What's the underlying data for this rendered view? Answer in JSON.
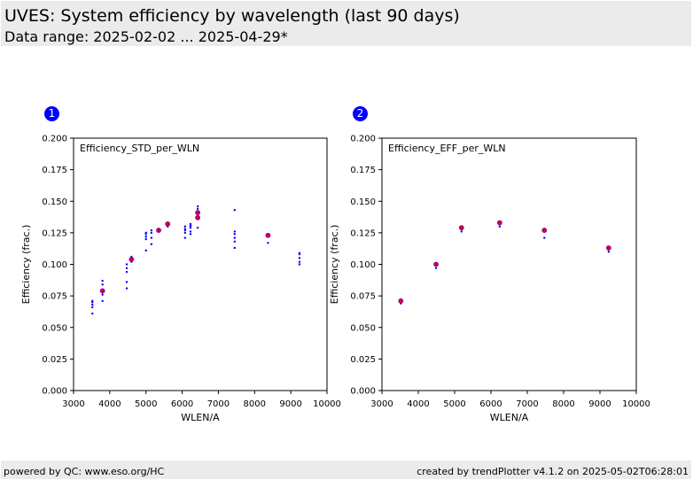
{
  "header": {
    "title": "UVES: System efficiency by wavelength (last 90 days)",
    "subtitle": "Data range: 2025-02-02 ... 2025-04-29*"
  },
  "footer": {
    "left": "powered by QC: www.eso.org/HC",
    "right": "created by trendPlotter v4.1.2 on 2025-05-02T06:28:01"
  },
  "colors": {
    "points": "#0000ff",
    "median": "#cc0044",
    "badge": "#0000ff",
    "header_bg": "#ebebeb"
  },
  "chart_data": [
    {
      "type": "scatter",
      "badge": "1",
      "title": "Efficiency_STD_per_WLN",
      "xlabel": "WLEN/A",
      "ylabel": "Efficiency (frac.)",
      "xlim": [
        3000,
        10000
      ],
      "ylim": [
        0,
        0.2
      ],
      "xticks": [
        "3000",
        "4000",
        "5000",
        "6000",
        "7000",
        "8000",
        "9000",
        "10000"
      ],
      "yticks": [
        "0.000",
        "0.025",
        "0.050",
        "0.075",
        "0.100",
        "0.125",
        "0.150",
        "0.175",
        "0.200"
      ],
      "grid": false,
      "points": [
        [
          3520,
          0.061
        ],
        [
          3520,
          0.066
        ],
        [
          3520,
          0.068
        ],
        [
          3520,
          0.07
        ],
        [
          3520,
          0.071
        ],
        [
          3800,
          0.071
        ],
        [
          3800,
          0.076
        ],
        [
          3800,
          0.078
        ],
        [
          3800,
          0.08
        ],
        [
          3800,
          0.084
        ],
        [
          3800,
          0.087
        ],
        [
          4470,
          0.081
        ],
        [
          4470,
          0.086
        ],
        [
          4470,
          0.094
        ],
        [
          4470,
          0.097
        ],
        [
          4470,
          0.1
        ],
        [
          4600,
          0.102
        ],
        [
          4600,
          0.104
        ],
        [
          4600,
          0.106
        ],
        [
          5000,
          0.111
        ],
        [
          5000,
          0.12
        ],
        [
          5000,
          0.122
        ],
        [
          5000,
          0.124
        ],
        [
          5000,
          0.125
        ],
        [
          5150,
          0.116
        ],
        [
          5150,
          0.121
        ],
        [
          5150,
          0.125
        ],
        [
          5150,
          0.127
        ],
        [
          5350,
          0.126
        ],
        [
          5350,
          0.127
        ],
        [
          5600,
          0.13
        ],
        [
          5600,
          0.131
        ],
        [
          5600,
          0.132
        ],
        [
          6080,
          0.121
        ],
        [
          6080,
          0.125
        ],
        [
          6080,
          0.127
        ],
        [
          6080,
          0.128
        ],
        [
          6080,
          0.13
        ],
        [
          6230,
          0.124
        ],
        [
          6230,
          0.126
        ],
        [
          6230,
          0.129
        ],
        [
          6230,
          0.13
        ],
        [
          6230,
          0.131
        ],
        [
          6230,
          0.132
        ],
        [
          6430,
          0.129
        ],
        [
          6430,
          0.136
        ],
        [
          6430,
          0.138
        ],
        [
          6430,
          0.14
        ],
        [
          6430,
          0.144
        ],
        [
          6430,
          0.146
        ],
        [
          7450,
          0.113
        ],
        [
          7450,
          0.118
        ],
        [
          7450,
          0.121
        ],
        [
          7450,
          0.124
        ],
        [
          7450,
          0.126
        ],
        [
          7450,
          0.143
        ],
        [
          8370,
          0.117
        ],
        [
          8370,
          0.123
        ],
        [
          9240,
          0.1
        ],
        [
          9240,
          0.102
        ],
        [
          9240,
          0.105
        ],
        [
          9240,
          0.108
        ],
        [
          9240,
          0.109
        ]
      ],
      "medians": [
        [
          3800,
          0.079
        ],
        [
          4600,
          0.104
        ],
        [
          5350,
          0.127
        ],
        [
          5600,
          0.132
        ],
        [
          6430,
          0.137
        ],
        [
          6430,
          0.141
        ],
        [
          8370,
          0.123
        ]
      ]
    },
    {
      "type": "scatter",
      "badge": "2",
      "title": "Efficiency_EFF_per_WLN",
      "xlabel": "WLEN/A",
      "ylabel": "Efficiency (frac.)",
      "xlim": [
        3000,
        10000
      ],
      "ylim": [
        0,
        0.2
      ],
      "xticks": [
        "3000",
        "4000",
        "5000",
        "6000",
        "7000",
        "8000",
        "9000",
        "10000"
      ],
      "yticks": [
        "0.000",
        "0.025",
        "0.050",
        "0.075",
        "0.100",
        "0.125",
        "0.150",
        "0.175",
        "0.200"
      ],
      "grid": false,
      "points": [
        [
          3520,
          0.069
        ],
        [
          4490,
          0.097
        ],
        [
          5190,
          0.126
        ],
        [
          6240,
          0.13
        ],
        [
          7470,
          0.121
        ],
        [
          9240,
          0.11
        ]
      ],
      "medians": [
        [
          3520,
          0.071
        ],
        [
          4490,
          0.1
        ],
        [
          5190,
          0.129
        ],
        [
          6240,
          0.133
        ],
        [
          7470,
          0.127
        ],
        [
          9240,
          0.113
        ]
      ]
    }
  ]
}
